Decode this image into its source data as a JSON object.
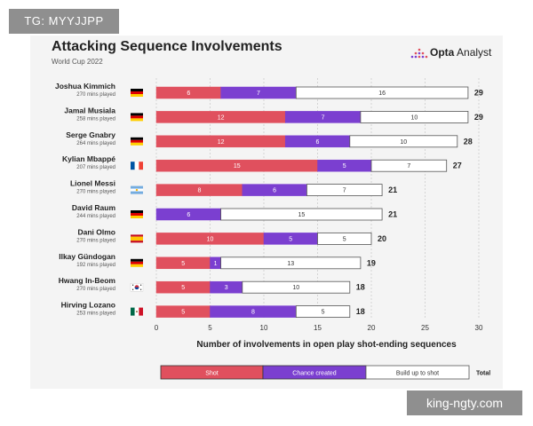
{
  "watermarks": {
    "top": "TG: MYYJJPP",
    "bottom": "king-ngty.com"
  },
  "header": {
    "title": "Attacking Sequence Involvements",
    "subtitle": "World Cup 2022",
    "brand_bold": "Opta",
    "brand_rest": " Analyst"
  },
  "colors": {
    "shot": "#e0505e",
    "chance": "#7b3fd0",
    "buildup": "#ffffff",
    "buildup_border": "#555555",
    "flag_germany": [
      "#000000",
      "#dd0000",
      "#ffce00"
    ],
    "flag_france": [
      "#0055a4",
      "#ffffff",
      "#ef4135"
    ],
    "flag_argentina": [
      "#74acdf",
      "#ffffff",
      "#74acdf"
    ],
    "flag_spain": [
      "#c60b1e",
      "#ffc400",
      "#c60b1e"
    ]
  },
  "chart_data": {
    "type": "bar",
    "orientation": "horizontal",
    "stacked": true,
    "title": "Attacking Sequence Involvements",
    "subtitle": "World Cup 2022",
    "xlabel": "Number of involvements in open play shot-ending sequences",
    "xlim": [
      0,
      30
    ],
    "xticks": [
      0,
      5,
      10,
      15,
      20,
      25,
      30
    ],
    "grid": true,
    "legend_position": "bottom",
    "categories": [
      "Joshua Kimmich",
      "Jamal Musiala",
      "Serge Gnabry",
      "Kylian Mbappé",
      "Lionel Messi",
      "David Raum",
      "Dani Olmo",
      "Ilkay Gündogan",
      "Hwang In-Beom",
      "Hirving Lozano"
    ],
    "minutes": [
      "270 mins played",
      "258 mins played",
      "264 mins played",
      "207 mins played",
      "270 mins played",
      "244 mins played",
      "270 mins played",
      "192 mins played",
      "270 mins played",
      "253 mins played"
    ],
    "flags": [
      "germany-flag",
      "germany-flag",
      "germany-flag",
      "france-flag",
      "argentina-flag",
      "germany-flag",
      "spain-flag",
      "germany-flag",
      "south-korea-flag",
      "mexico-flag"
    ],
    "series": [
      {
        "name": "Shot",
        "values": [
          6,
          12,
          12,
          15,
          8,
          0,
          10,
          5,
          5,
          5
        ]
      },
      {
        "name": "Chance created",
        "values": [
          7,
          7,
          6,
          5,
          6,
          6,
          5,
          1,
          3,
          8
        ]
      },
      {
        "name": "Build up to shot",
        "values": [
          16,
          10,
          10,
          7,
          7,
          15,
          5,
          13,
          10,
          5
        ]
      }
    ],
    "totals": [
      29,
      29,
      28,
      27,
      21,
      21,
      20,
      19,
      18,
      18
    ],
    "legend_total_label": "Total"
  }
}
